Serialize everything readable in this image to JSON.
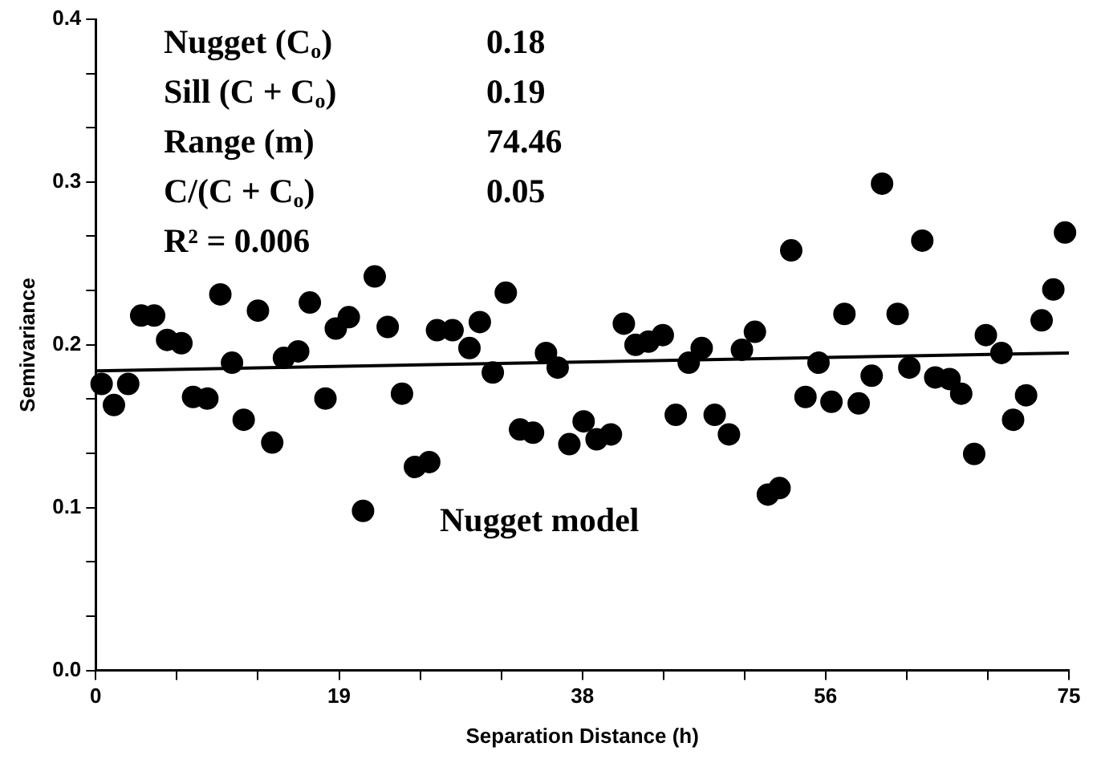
{
  "chart_data": {
    "type": "scatter",
    "xlabel": "Separation Distance (h)",
    "ylabel": "Semivariance",
    "xlim": [
      0,
      75
    ],
    "xticks": [
      0,
      {
        "value": 6.25,
        "label": null
      },
      {
        "value": 12.5,
        "label": null
      },
      {
        "value": 18.75,
        "label": "19"
      },
      {
        "value": 25,
        "label": null
      },
      {
        "value": 31.25,
        "label": null
      },
      {
        "value": 37.5,
        "label": "38"
      },
      {
        "value": 43.75,
        "label": null
      },
      {
        "value": 50,
        "label": null
      },
      {
        "value": 56.25,
        "label": "56"
      },
      {
        "value": 62.5,
        "label": null
      },
      {
        "value": 68.75,
        "label": null
      },
      75
    ],
    "ylim": [
      0,
      0.4
    ],
    "yticks": [
      {
        "value": 0,
        "label": "0.0"
      },
      {
        "value": 0.0333,
        "label": null
      },
      {
        "value": 0.0667,
        "label": null
      },
      0.1,
      {
        "value": 0.1333,
        "label": null
      },
      {
        "value": 0.1667,
        "label": null
      },
      0.2,
      {
        "value": 0.2333,
        "label": null
      },
      {
        "value": 0.2667,
        "label": null
      },
      0.3,
      {
        "value": 0.3333,
        "label": null
      },
      {
        "value": 0.3667,
        "label": null
      },
      0.4
    ],
    "grid": false,
    "legend": false,
    "marker": "circle",
    "series": [
      {
        "color": "#000000",
        "x": [
          0.45,
          1.4,
          2.5,
          3.5,
          4.5,
          5.5,
          6.6,
          7.5,
          8.6,
          9.6,
          10.5,
          11.4,
          12.5,
          13.6,
          14.5,
          15.6,
          16.5,
          17.7,
          18.5,
          19.5,
          20.6,
          21.5,
          22.5,
          23.6,
          24.6,
          25.7,
          26.3,
          27.5,
          28.8,
          29.6,
          30.6,
          31.6,
          32.7,
          33.7,
          34.7,
          35.6,
          36.5,
          37.6,
          38.6,
          39.7,
          40.7,
          41.6,
          42.6,
          43.7,
          44.7,
          45.7,
          46.7,
          47.7,
          48.8,
          49.8,
          50.8,
          51.8,
          52.7,
          53.6,
          54.7,
          55.7,
          56.7,
          57.7,
          58.8,
          59.8,
          60.6,
          61.8,
          62.7,
          63.7,
          64.7,
          65.8,
          66.7,
          67.7,
          68.6,
          69.8,
          70.7,
          71.7,
          72.9,
          73.8,
          74.7
        ],
        "values": [
          0.176,
          0.163,
          0.176,
          0.218,
          0.218,
          0.203,
          0.201,
          0.168,
          0.167,
          0.231,
          0.189,
          0.154,
          0.221,
          0.14,
          0.192,
          0.196,
          0.226,
          0.167,
          0.21,
          0.217,
          0.098,
          0.242,
          0.211,
          0.17,
          0.125,
          0.128,
          0.209,
          0.209,
          0.198,
          0.214,
          0.183,
          0.232,
          0.148,
          0.146,
          0.195,
          0.186,
          0.139,
          0.153,
          0.142,
          0.145,
          0.213,
          0.2,
          0.202,
          0.206,
          0.157,
          0.189,
          0.198,
          0.157,
          0.145,
          0.197,
          0.208,
          0.108,
          0.112,
          0.258,
          0.168,
          0.189,
          0.165,
          0.219,
          0.164,
          0.181,
          0.299,
          0.219,
          0.186,
          0.264,
          0.18,
          0.179,
          0.17,
          0.133,
          0.206,
          0.195,
          0.154,
          0.169,
          0.215,
          0.234,
          0.269
        ]
      },
      {
        "type": "line",
        "color": "#000000",
        "marker": "none",
        "line_style": "solid",
        "x": [
          0,
          75
        ],
        "values": [
          0.184,
          0.195
        ]
      }
    ],
    "annotations": [
      "Nugget (C$_{o}$)",
      "0.18",
      "Sill (C + C$_{o}$)",
      "0.19",
      "Range (m)",
      "74.46",
      "C/(C + C$_{o}$)",
      "0.05",
      "R² = 0.006",
      "Nugget model"
    ]
  }
}
